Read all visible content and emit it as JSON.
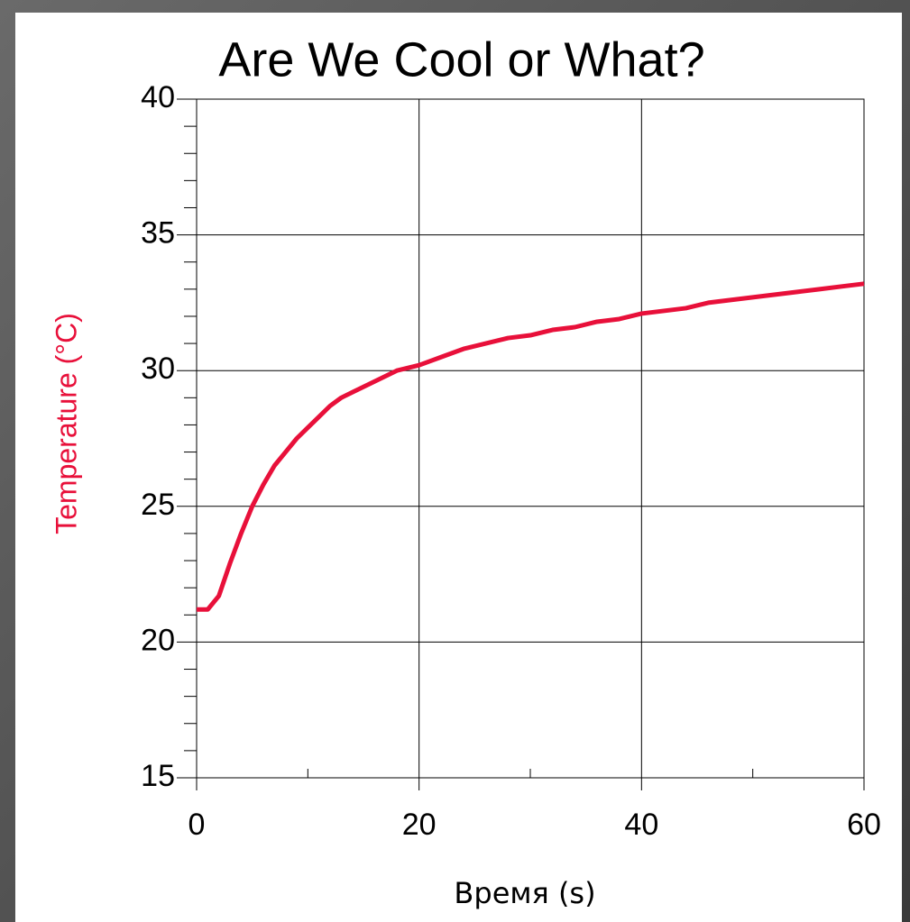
{
  "chart_data": {
    "type": "line",
    "title": "Are We Cool or What?",
    "x_label": "Время (s)",
    "y_label": "Temperature (°C)",
    "x": [
      0,
      1,
      2,
      3,
      4,
      5,
      6,
      7,
      8,
      9,
      10,
      11,
      12,
      13,
      14,
      15,
      16,
      17,
      18,
      20,
      22,
      24,
      26,
      28,
      30,
      32,
      34,
      36,
      38,
      40,
      42,
      44,
      46,
      48,
      50,
      52,
      54,
      56,
      58,
      60
    ],
    "values": [
      21.2,
      21.2,
      21.7,
      22.9,
      24.0,
      25.0,
      25.8,
      26.5,
      27.0,
      27.5,
      27.9,
      28.3,
      28.7,
      29.0,
      29.2,
      29.4,
      29.6,
      29.8,
      30.0,
      30.2,
      30.5,
      30.8,
      31.0,
      31.2,
      31.3,
      31.5,
      31.6,
      31.8,
      31.9,
      32.1,
      32.2,
      32.3,
      32.5,
      32.6,
      32.7,
      32.8,
      32.9,
      33.0,
      33.1,
      33.2
    ],
    "color": "#e8103a",
    "label_color": "#e8103a",
    "xlim": [
      0,
      60
    ],
    "xticks": [
      0,
      20,
      40,
      60
    ],
    "xminorticks": [
      10,
      30,
      50
    ],
    "ylim": [
      15,
      40
    ],
    "yticks": [
      15,
      20,
      25,
      30,
      35,
      40
    ],
    "yminorticks": [
      16,
      17,
      18,
      19,
      21,
      22,
      23,
      24,
      26,
      27,
      28,
      29,
      31,
      32,
      33,
      34,
      36,
      37,
      38,
      39
    ],
    "grid": true
  }
}
